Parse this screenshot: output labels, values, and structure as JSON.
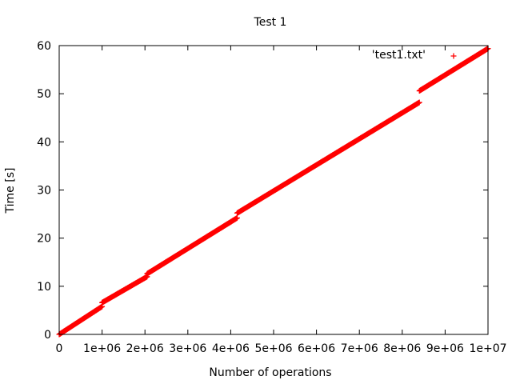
{
  "chart_data": {
    "type": "scatter",
    "title": "Test 1",
    "xlabel": "Number of operations",
    "ylabel": "Time [s]",
    "xlim": [
      0,
      10000000
    ],
    "ylim": [
      0,
      60
    ],
    "xticks": [
      0,
      1000000,
      2000000,
      3000000,
      4000000,
      5000000,
      6000000,
      7000000,
      8000000,
      9000000,
      10000000
    ],
    "xtick_labels": [
      "0",
      "1e+06",
      "2e+06",
      "3e+06",
      "4e+06",
      "5e+06",
      "6e+06",
      "7e+06",
      "8e+06",
      "9e+06",
      "1e+07"
    ],
    "yticks": [
      0,
      10,
      20,
      30,
      40,
      50,
      60
    ],
    "ytick_labels": [
      "0",
      "10",
      "20",
      "30",
      "40",
      "50",
      "60"
    ],
    "grid": false,
    "legend": {
      "position": "top-right",
      "entries": [
        "'test1.txt'"
      ]
    },
    "series": [
      {
        "name": "'test1.txt'",
        "color": "#ff0000",
        "marker": "+",
        "segments": [
          {
            "x": [
              0,
              1000000
            ],
            "y": [
              0,
              5.8
            ]
          },
          {
            "x": [
              1000000,
              2050000
            ],
            "y": [
              6.6,
              12.0
            ]
          },
          {
            "x": [
              2050000,
              4150000
            ],
            "y": [
              12.6,
              24.2
            ]
          },
          {
            "x": [
              4150000,
              8400000
            ],
            "y": [
              25.2,
              48.2
            ]
          },
          {
            "x": [
              8400000,
              10000000
            ],
            "y": [
              50.6,
              59.4
            ]
          }
        ]
      }
    ]
  }
}
